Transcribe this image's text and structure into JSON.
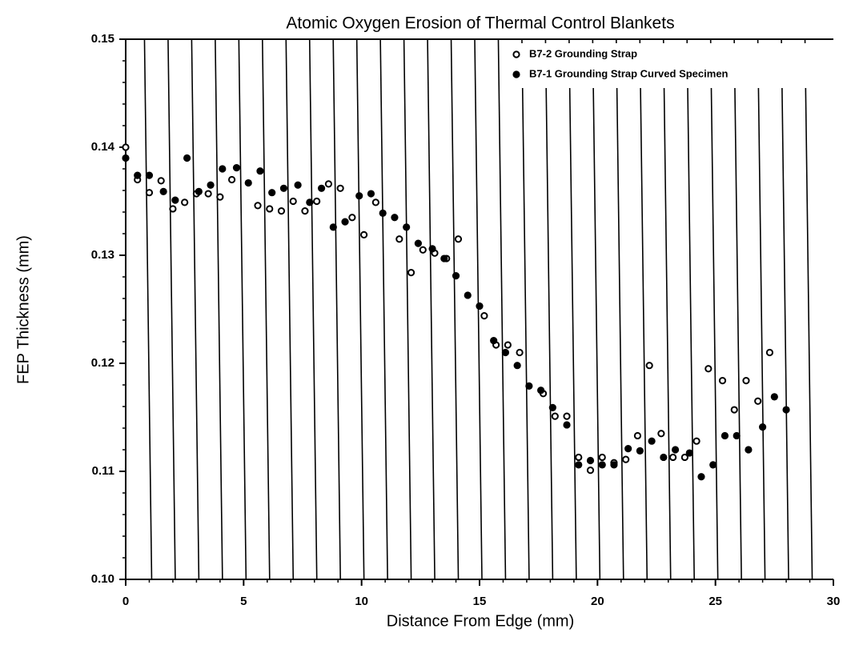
{
  "chart_data": {
    "type": "scatter",
    "title": "Atomic Oxygen Erosion of Thermal Control Blankets",
    "xlabel": "Distance From Edge (mm)",
    "ylabel": "FEP Thickness (mm)",
    "xlim": [
      0,
      30
    ],
    "xticks": [
      0,
      5,
      10,
      15,
      20,
      25,
      30
    ],
    "ylim": [
      0.1,
      0.15
    ],
    "yticks": [
      {
        "value": 0.1,
        "label": "0.10"
      },
      0.11,
      0.12,
      0.13,
      0.14,
      0.15
    ],
    "legend": "upper right",
    "series": [
      {
        "name": "B7-2 Grounding Strap",
        "color": "#000000",
        "marker": "open",
        "x": [
          0,
          0.5,
          1.0,
          1.5,
          2.0,
          2.5,
          3.0,
          3.5,
          4.0,
          4.5,
          5.6,
          6.1,
          6.6,
          7.1,
          7.6,
          8.1,
          8.6,
          9.1,
          9.6,
          10.1,
          10.6,
          11.6,
          12.1,
          12.6,
          13.1,
          13.6,
          14.1,
          15.2,
          15.7,
          16.2,
          16.7,
          17.7,
          18.2,
          18.7,
          19.2,
          19.7,
          20.2,
          20.7,
          21.2,
          21.7,
          22.2,
          22.7,
          23.2,
          23.7,
          24.2,
          24.7,
          25.3,
          25.8,
          26.3,
          26.8,
          27.3
        ],
        "values": [
          0.14,
          0.137,
          0.1358,
          0.1369,
          0.1343,
          0.1349,
          0.1357,
          0.1357,
          0.1354,
          0.137,
          0.1346,
          0.1343,
          0.1341,
          0.135,
          0.1341,
          0.135,
          0.1366,
          0.1362,
          0.1335,
          0.1319,
          0.1349,
          0.1315,
          0.1284,
          0.1305,
          0.1302,
          0.1297,
          0.1315,
          0.1244,
          0.1217,
          0.1217,
          0.121,
          0.1172,
          0.1151,
          0.1151,
          0.1113,
          0.1101,
          0.1113,
          0.1108,
          0.1111,
          0.1133,
          0.1198,
          0.1135,
          0.1113,
          0.1113,
          0.1128,
          0.1195,
          0.1184,
          0.1157,
          0.1184,
          0.1165,
          0.121
        ]
      },
      {
        "name": "B7-1 Grounding Strap Curved Specimen",
        "color": "#000000",
        "marker": "filled",
        "x": [
          0,
          0.5,
          1.0,
          1.6,
          2.1,
          2.6,
          3.1,
          3.6,
          4.1,
          4.7,
          5.2,
          5.7,
          6.2,
          6.7,
          7.3,
          7.8,
          8.3,
          8.8,
          9.3,
          9.9,
          10.4,
          10.9,
          11.4,
          11.9,
          12.4,
          13.0,
          13.5,
          14.0,
          14.5,
          15.0,
          15.6,
          16.1,
          16.6,
          17.1,
          17.6,
          18.1,
          18.7,
          19.2,
          19.7,
          20.2,
          20.7,
          21.3,
          21.8,
          22.3,
          22.8,
          23.3,
          23.9,
          24.4,
          24.9,
          25.4,
          25.9,
          26.4,
          27.0,
          27.5,
          28.0
        ],
        "values": [
          0.139,
          0.1374,
          0.1374,
          0.1359,
          0.1351,
          0.139,
          0.1359,
          0.1365,
          0.138,
          0.1381,
          0.1367,
          0.1378,
          0.1358,
          0.1362,
          0.1365,
          0.1349,
          0.1362,
          0.1326,
          0.1331,
          0.1355,
          0.1357,
          0.1339,
          0.1335,
          0.1326,
          0.1311,
          0.1306,
          0.1297,
          0.1281,
          0.1263,
          0.1253,
          0.1221,
          0.121,
          0.1198,
          0.1179,
          0.1175,
          0.1159,
          0.1143,
          0.1106,
          0.111,
          0.1106,
          0.1106,
          0.1121,
          0.1119,
          0.1128,
          0.1113,
          0.112,
          0.1117,
          0.1095,
          0.1106,
          0.1133,
          0.1133,
          0.112,
          0.1141,
          0.1169,
          0.1157
        ]
      }
    ]
  }
}
